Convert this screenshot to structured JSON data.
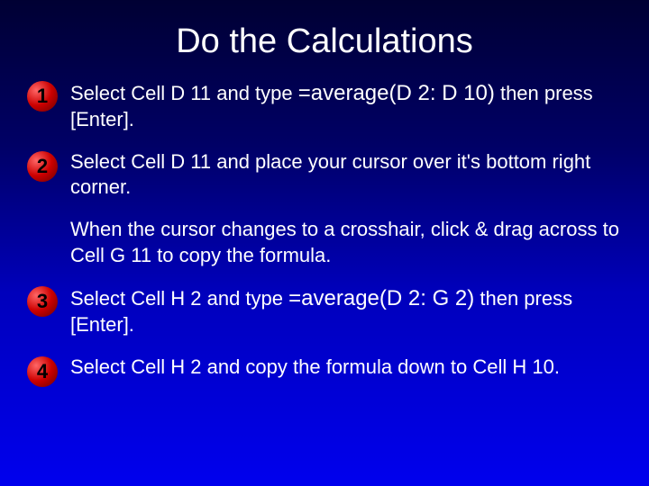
{
  "title": "Do the Calculations",
  "steps": {
    "s1": {
      "num": "1",
      "prefix": "Select Cell D 11 and type ",
      "formula": "=average(D 2: D 10)",
      "suffix": " then press [Enter]."
    },
    "s2": {
      "num": "2",
      "text": "Select Cell D 11 and place your cursor over it's bottom right corner."
    },
    "cont": "When the cursor changes to a crosshair, click & drag across to Cell G 11 to copy the formula.",
    "s3": {
      "num": "3",
      "prefix": "Select Cell H 2 and type  ",
      "formula": "=average(D 2: G 2)",
      "suffix": " then press [Enter]."
    },
    "s4": {
      "num": "4",
      "text": "Select Cell H 2 and copy the formula down to Cell H 10."
    }
  },
  "colors": {
    "text": "#ffffff",
    "badge_text": "#000000"
  }
}
